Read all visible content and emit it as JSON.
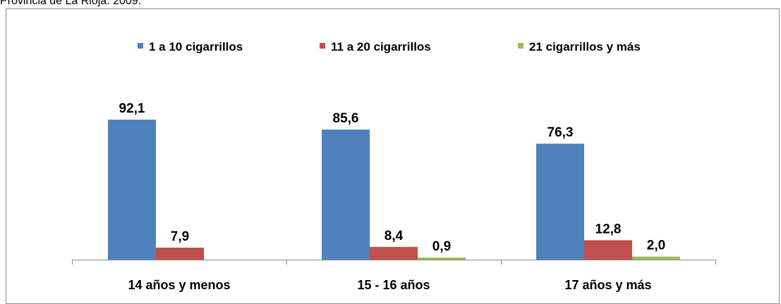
{
  "caption": "Provincia de La Rioja. 2009.",
  "chart_data": {
    "type": "bar",
    "title": "",
    "xlabel": "",
    "ylabel": "",
    "ylim": [
      0,
      100
    ],
    "grid": false,
    "legend_position": "top",
    "categories": [
      "14 años y menos",
      "15 - 16 años",
      "17 años y más"
    ],
    "series": [
      {
        "name": "1 a 10 cigarrillos",
        "color": "#4f81bd",
        "values": [
          92.1,
          85.6,
          76.3
        ],
        "labels": [
          "92,1",
          "85,6",
          "76,3"
        ]
      },
      {
        "name": "11 a 20 cigarrillos",
        "color": "#c0504d",
        "values": [
          7.9,
          8.4,
          12.8
        ],
        "labels": [
          "7,9",
          "8,4",
          "12,8"
        ]
      },
      {
        "name": "21 cigarrillos y más",
        "color": "#9bbb59",
        "values": [
          0.0,
          0.9,
          2.0
        ],
        "labels": [
          "",
          "0,9",
          "2,0"
        ]
      }
    ]
  }
}
